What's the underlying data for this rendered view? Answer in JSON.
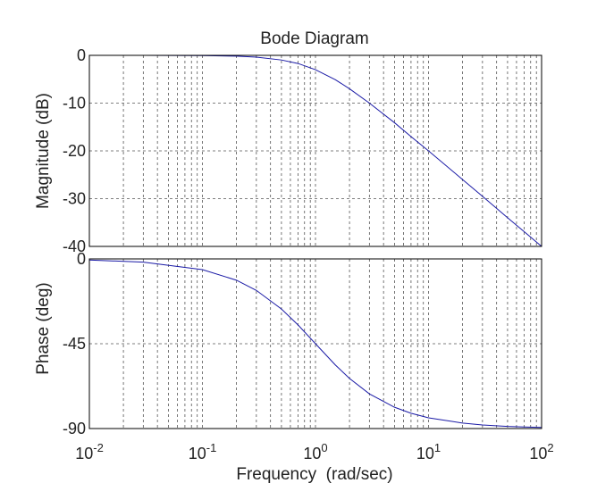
{
  "chart_data": [
    {
      "type": "line",
      "title": "Bode Diagram",
      "ylabel": "Magnitude (dB)",
      "xscale": "log",
      "xlim": [
        0.01,
        100
      ],
      "ylim": [
        -40,
        0
      ],
      "yticks": [
        0,
        -10,
        -20,
        -30,
        -40
      ],
      "ytick_labels": [
        "0",
        "-10",
        "-20",
        "-30",
        "-40"
      ],
      "grid": true,
      "series": [
        {
          "x": [
            0.01,
            0.03,
            0.1,
            0.2,
            0.3,
            0.5,
            0.7,
            1,
            1.5,
            2,
            3,
            5,
            7,
            10,
            20,
            30,
            50,
            70,
            100
          ],
          "values": [
            0,
            0,
            -0.04,
            -0.17,
            -0.37,
            -0.97,
            -1.7,
            -3.0,
            -5.1,
            -7.0,
            -10.0,
            -14.1,
            -17.0,
            -20.0,
            -26.0,
            -29.5,
            -34.0,
            -36.9,
            -40.0
          ]
        }
      ]
    },
    {
      "type": "line",
      "ylabel": "Phase (deg)",
      "xlabel": "Frequency  (rad/sec)",
      "xscale": "log",
      "xlim": [
        0.01,
        100
      ],
      "ylim": [
        -90,
        0
      ],
      "yticks": [
        0,
        -45,
        -90
      ],
      "ytick_labels": [
        "0",
        "-45",
        "-90"
      ],
      "xticks": [
        {
          "base": "10",
          "exp": "-2",
          "value": 0.01
        },
        {
          "base": "10",
          "exp": "-1",
          "value": 0.1
        },
        {
          "base": "10",
          "exp": "0",
          "value": 1
        },
        {
          "base": "10",
          "exp": "1",
          "value": 10
        },
        {
          "base": "10",
          "exp": "2",
          "value": 100
        }
      ],
      "grid": true,
      "series": [
        {
          "x": [
            0.01,
            0.03,
            0.1,
            0.2,
            0.3,
            0.5,
            0.7,
            1,
            1.5,
            2,
            3,
            5,
            7,
            10,
            20,
            30,
            50,
            70,
            100
          ],
          "values": [
            -0.6,
            -1.7,
            -5.7,
            -11.3,
            -16.7,
            -26.6,
            -35.0,
            -45.0,
            -56.3,
            -63.4,
            -71.6,
            -78.7,
            -81.9,
            -84.3,
            -87.1,
            -88.1,
            -88.9,
            -89.2,
            -89.4
          ]
        }
      ]
    }
  ],
  "colors": {
    "curve": "#1a1aa6",
    "grid": "#555555",
    "text": "#222222"
  }
}
